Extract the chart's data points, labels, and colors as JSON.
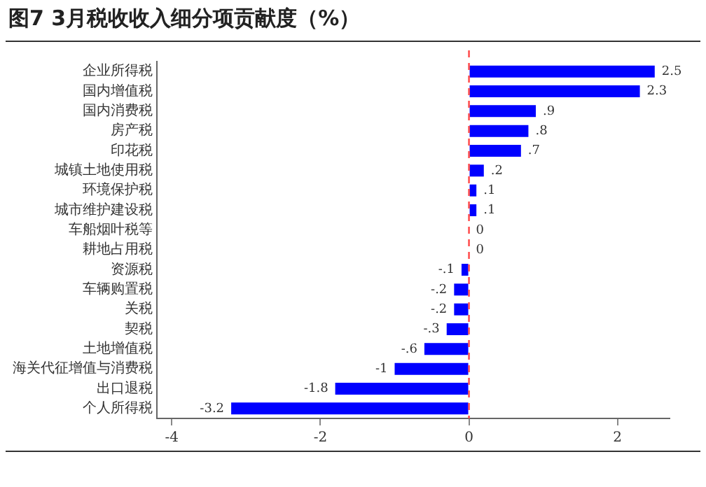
{
  "chart_data": {
    "type": "bar",
    "orientation": "horizontal",
    "title": "图7  3月税收收入细分项贡献度（%）",
    "categories": [
      "企业所得税",
      "国内增值税",
      "国内消费税",
      "房产税",
      "印花税",
      "城镇土地使用税",
      "环境保护税",
      "城市维护建设税",
      "车船烟叶税等",
      "耕地占用税",
      "资源税",
      "车辆购置税",
      "关税",
      "契税",
      "土地增值税",
      "海关代征增值与消费税",
      "出口退税",
      "个人所得税"
    ],
    "values": [
      2.5,
      2.3,
      0.9,
      0.8,
      0.7,
      0.2,
      0.1,
      0.1,
      0,
      0,
      -0.1,
      -0.2,
      -0.2,
      -0.3,
      -0.6,
      -1,
      -1.8,
      -3.2
    ],
    "value_labels": [
      "2.5",
      "2.3",
      ".9",
      ".8",
      ".7",
      ".2",
      ".1",
      ".1",
      "0",
      "0",
      "-.1",
      "-.2",
      "-.2",
      "-.3",
      "-.6",
      "-1",
      "-1.8",
      "-3.2"
    ],
    "color": "#0000ff",
    "xlim": [
      -4.2,
      2.7
    ],
    "xticks": [
      -4,
      -2,
      0,
      2
    ],
    "ref_lines": [
      {
        "axis": "x",
        "value": 0,
        "color": "#ff4444",
        "line_style": "dashed"
      }
    ],
    "grid": false,
    "legend": false
  }
}
